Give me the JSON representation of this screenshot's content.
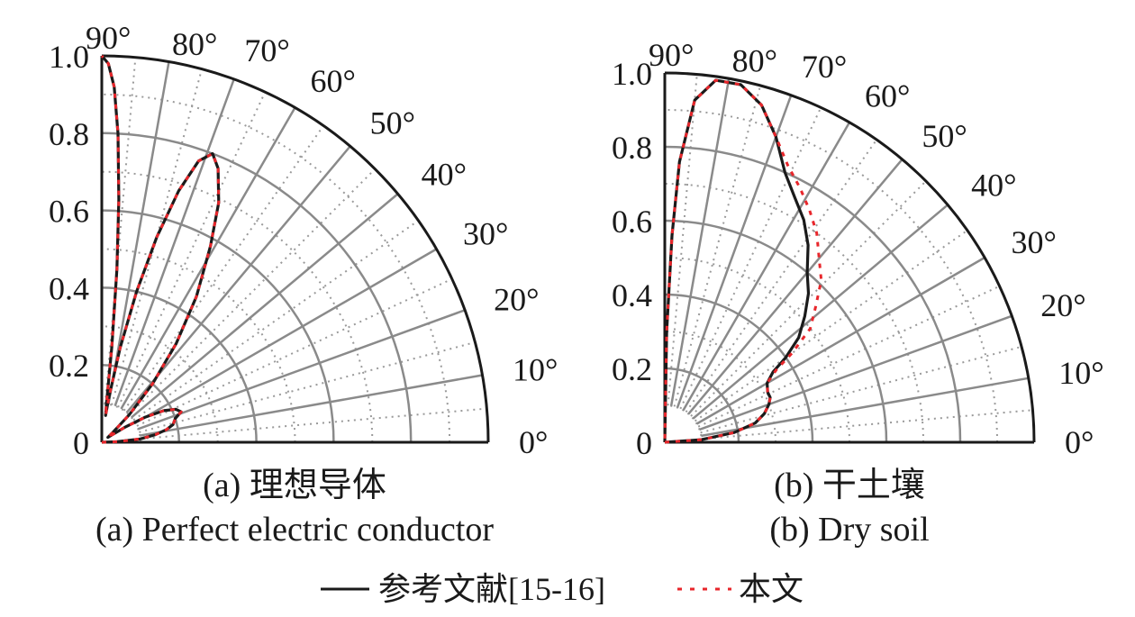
{
  "chart_data": [
    {
      "type": "polar",
      "subplot_label": "(a)",
      "title_cn": "(a) 理想导体",
      "title_en": "(a) Perfect electric conductor",
      "angle_range_deg": [
        0,
        90
      ],
      "angle_ticks": [
        "0°",
        "10°",
        "20°",
        "30°",
        "40°",
        "50°",
        "60°",
        "70°",
        "80°",
        "90°"
      ],
      "radial_range": [
        0,
        1.0
      ],
      "radial_ticks": [
        "0",
        "0.2",
        "0.4",
        "0.6",
        "0.8",
        "1.0"
      ],
      "grid": true,
      "series": [
        {
          "name": "参考文献[15-16]",
          "style": "solid",
          "color": "#1a1a1a",
          "points": [
            [
              0,
              0
            ],
            [
              2,
              0.04
            ],
            [
              5,
              0.1
            ],
            [
              8,
              0.14
            ],
            [
              11,
              0.17
            ],
            [
              14,
              0.19
            ],
            [
              18,
              0.2
            ],
            [
              21,
              0.22
            ],
            [
              24,
              0.21
            ],
            [
              27,
              0.18
            ],
            [
              30,
              0.13
            ],
            [
              33,
              0.07
            ],
            [
              36,
              0.03
            ],
            [
              39,
              0.02
            ],
            [
              42,
              0.04
            ],
            [
              45,
              0.1
            ],
            [
              49,
              0.2
            ],
            [
              53,
              0.32
            ],
            [
              57,
              0.45
            ],
            [
              61,
              0.58
            ],
            [
              64,
              0.69
            ],
            [
              67,
              0.77
            ],
            [
              69,
              0.8
            ],
            [
              71,
              0.77
            ],
            [
              73,
              0.68
            ],
            [
              75,
              0.55
            ],
            [
              77,
              0.4
            ],
            [
              79,
              0.25
            ],
            [
              81,
              0.12
            ],
            [
              82,
              0.07
            ],
            [
              83,
              0.1
            ],
            [
              84,
              0.25
            ],
            [
              85,
              0.45
            ],
            [
              86,
              0.63
            ],
            [
              87,
              0.8
            ],
            [
              88,
              0.92
            ],
            [
              89,
              0.98
            ],
            [
              90,
              1.0
            ]
          ]
        },
        {
          "name": "本文",
          "style": "dashed",
          "color": "#e8262b",
          "points": [
            [
              0,
              0
            ],
            [
              2,
              0.04
            ],
            [
              5,
              0.1
            ],
            [
              8,
              0.14
            ],
            [
              11,
              0.17
            ],
            [
              14,
              0.19
            ],
            [
              18,
              0.2
            ],
            [
              21,
              0.22
            ],
            [
              24,
              0.21
            ],
            [
              27,
              0.18
            ],
            [
              30,
              0.13
            ],
            [
              33,
              0.07
            ],
            [
              36,
              0.03
            ],
            [
              39,
              0.02
            ],
            [
              42,
              0.04
            ],
            [
              45,
              0.1
            ],
            [
              49,
              0.2
            ],
            [
              53,
              0.32
            ],
            [
              57,
              0.45
            ],
            [
              61,
              0.58
            ],
            [
              64,
              0.69
            ],
            [
              67,
              0.77
            ],
            [
              69,
              0.8
            ],
            [
              71,
              0.77
            ],
            [
              73,
              0.68
            ],
            [
              75,
              0.55
            ],
            [
              77,
              0.4
            ],
            [
              79,
              0.25
            ],
            [
              81,
              0.12
            ],
            [
              82,
              0.07
            ],
            [
              83,
              0.1
            ],
            [
              84,
              0.25
            ],
            [
              85,
              0.45
            ],
            [
              86,
              0.63
            ],
            [
              87,
              0.8
            ],
            [
              88,
              0.92
            ],
            [
              89,
              0.98
            ],
            [
              90,
              1.0
            ]
          ]
        }
      ]
    },
    {
      "type": "polar",
      "subplot_label": "(b)",
      "title_cn": "(b) 干土壤",
      "title_en": "(b) Dry soil",
      "angle_range_deg": [
        0,
        90
      ],
      "angle_ticks": [
        "0°",
        "10°",
        "20°",
        "30°",
        "40°",
        "50°",
        "60°",
        "70°",
        "80°",
        "90°"
      ],
      "radial_range": [
        0,
        1.0
      ],
      "radial_ticks": [
        "0",
        "0.2",
        "0.4",
        "0.6",
        "0.8",
        "1.0"
      ],
      "grid": true,
      "series": [
        {
          "name": "参考文献[15-16]",
          "style": "solid",
          "color": "#1a1a1a",
          "points": [
            [
              0,
              0
            ],
            [
              4,
              0.1
            ],
            [
              8,
              0.19
            ],
            [
              12,
              0.25
            ],
            [
              16,
              0.28
            ],
            [
              20,
              0.3
            ],
            [
              23,
              0.31
            ],
            [
              26,
              0.31
            ],
            [
              30,
              0.32
            ],
            [
              33,
              0.35
            ],
            [
              35,
              0.4
            ],
            [
              38,
              0.46
            ],
            [
              42,
              0.51
            ],
            [
              46,
              0.56
            ],
            [
              50,
              0.6
            ],
            [
              54,
              0.66
            ],
            [
              58,
              0.71
            ],
            [
              62,
              0.75
            ],
            [
              66,
              0.8
            ],
            [
              70,
              0.88
            ],
            [
              74,
              0.95
            ],
            [
              78,
              0.99
            ],
            [
              82,
              0.99
            ],
            [
              85,
              0.93
            ],
            [
              87,
              0.76
            ],
            [
              88,
              0.56
            ],
            [
              89,
              0.3
            ],
            [
              90,
              0
            ]
          ]
        },
        {
          "name": "本文",
          "style": "dashed",
          "color": "#e8262b",
          "points": [
            [
              0,
              0
            ],
            [
              4,
              0.1
            ],
            [
              8,
              0.19
            ],
            [
              12,
              0.25
            ],
            [
              16,
              0.28
            ],
            [
              20,
              0.3
            ],
            [
              23,
              0.31
            ],
            [
              26,
              0.31
            ],
            [
              30,
              0.32
            ],
            [
              33,
              0.36
            ],
            [
              35,
              0.42
            ],
            [
              38,
              0.5
            ],
            [
              42,
              0.55
            ],
            [
              46,
              0.61
            ],
            [
              50,
              0.65
            ],
            [
              54,
              0.7
            ],
            [
              58,
              0.74
            ],
            [
              62,
              0.78
            ],
            [
              66,
              0.82
            ],
            [
              70,
              0.88
            ],
            [
              74,
              0.95
            ],
            [
              78,
              0.99
            ],
            [
              82,
              0.99
            ],
            [
              85,
              0.93
            ],
            [
              87,
              0.76
            ],
            [
              88,
              0.56
            ],
            [
              89,
              0.3
            ],
            [
              90,
              0
            ]
          ]
        }
      ]
    }
  ],
  "legend": {
    "items": [
      {
        "label": "参考文献[15-16]",
        "style": "solid",
        "color": "#1a1a1a"
      },
      {
        "label": "本文",
        "style": "dashed",
        "color": "#e8262b"
      }
    ]
  }
}
